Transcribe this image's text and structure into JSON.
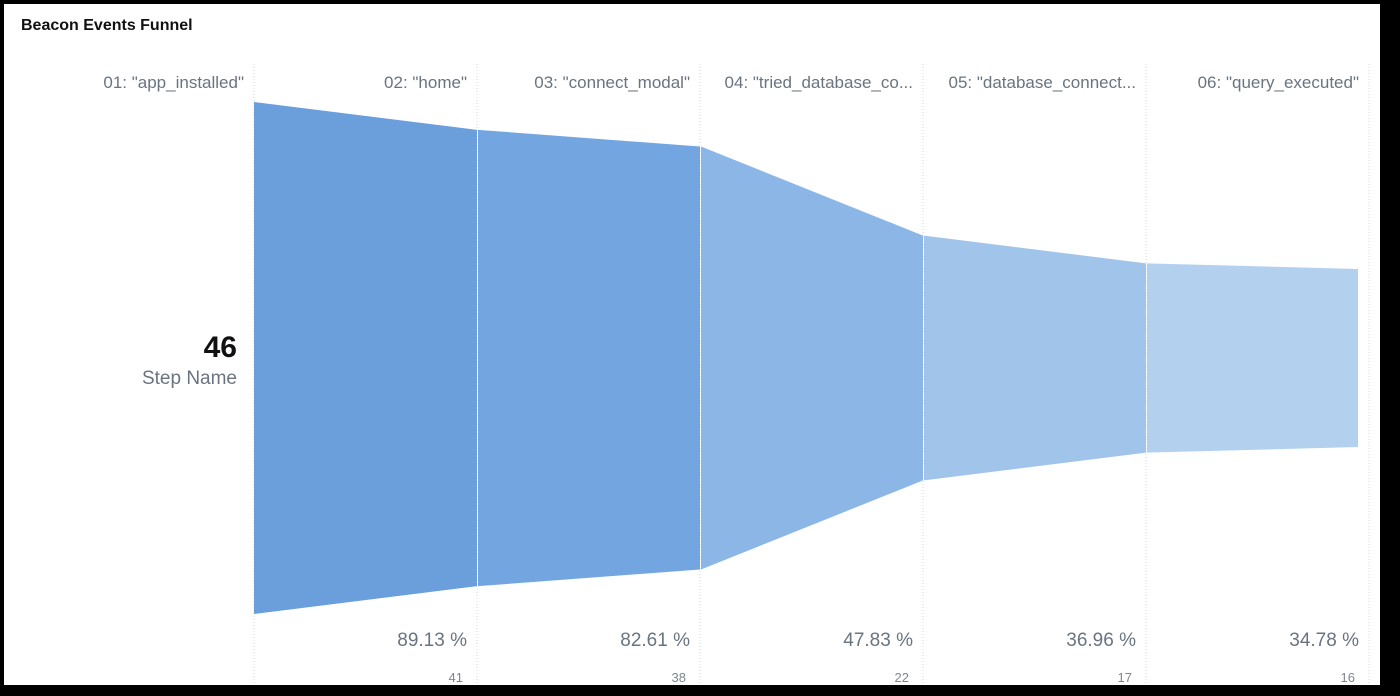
{
  "card": {
    "title": "Beacon Events Funnel"
  },
  "chart_data": {
    "type": "funnel",
    "total": "46",
    "total_caption": "Step Name",
    "steps": [
      {
        "label": "01: \"app_installed\"",
        "value": 46,
        "percent": "",
        "count": ""
      },
      {
        "label": "02: \"home\"",
        "value": 41,
        "percent": "89.13 %",
        "count": "41"
      },
      {
        "label": "03: \"connect_modal\"",
        "value": 38,
        "percent": "82.61 %",
        "count": "38"
      },
      {
        "label": "04: \"tried_database_co...",
        "value": 22,
        "percent": "47.83 %",
        "count": "22"
      },
      {
        "label": "05: \"database_connect...",
        "value": 17,
        "percent": "36.96 %",
        "count": "17"
      },
      {
        "label": "06: \"query_executed\"",
        "value": 16,
        "percent": "34.78 %",
        "count": "16"
      }
    ],
    "colors": [
      "#6a9fdb",
      "#73a6e0",
      "#8cb6e6",
      "#a1c4ea",
      "#b4d0ef"
    ]
  }
}
